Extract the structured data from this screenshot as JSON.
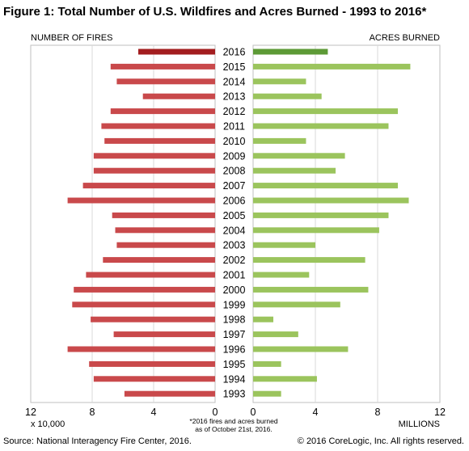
{
  "title": "Figure 1: Total Number of U.S. Wildfires and Acres Burned - 1993 to 2016*",
  "footer": {
    "source": "Source: National Interagency Fire Center, 2016.",
    "copyright": "© 2016 CoreLogic, Inc. All rights reserved."
  },
  "chart_data": {
    "type": "bar",
    "orientation": "horizontal-butterfly",
    "categories": [
      "2016",
      "2015",
      "2014",
      "2013",
      "2012",
      "2011",
      "2010",
      "2009",
      "2008",
      "2007",
      "2006",
      "2005",
      "2004",
      "2003",
      "2002",
      "2001",
      "2000",
      "1999",
      "1998",
      "1997",
      "1996",
      "1995",
      "1994",
      "1993"
    ],
    "left_panel": {
      "label": "NUMBER OF FIRES",
      "unit_label": "x 10,000",
      "xlim": [
        0,
        12
      ],
      "ticks": [
        "12",
        "8",
        "4",
        "0"
      ],
      "values": [
        5.0,
        6.8,
        6.4,
        4.7,
        6.8,
        7.4,
        7.2,
        7.9,
        7.9,
        8.6,
        9.6,
        6.7,
        6.5,
        6.4,
        7.3,
        8.4,
        9.2,
        9.3,
        8.1,
        6.6,
        9.6,
        8.2,
        7.9,
        5.9
      ],
      "highlight_color": "#a31d1f",
      "color": "#c9494b"
    },
    "right_panel": {
      "label": "ACRES BURNED",
      "unit_label": "MILLIONS",
      "xlim": [
        0,
        12
      ],
      "ticks": [
        "0",
        "4",
        "8",
        "12"
      ],
      "values": [
        4.8,
        10.1,
        3.4,
        4.4,
        9.3,
        8.7,
        3.4,
        5.9,
        5.3,
        9.3,
        10.0,
        8.7,
        8.1,
        4.0,
        7.2,
        3.6,
        7.4,
        5.6,
        1.3,
        2.9,
        6.1,
        1.8,
        4.1,
        1.8
      ],
      "highlight_color": "#5d9a36",
      "color": "#9bc45d"
    },
    "highlight_category": "2016",
    "note": "*2016 fires and acres burned as of October 21st, 2016."
  }
}
